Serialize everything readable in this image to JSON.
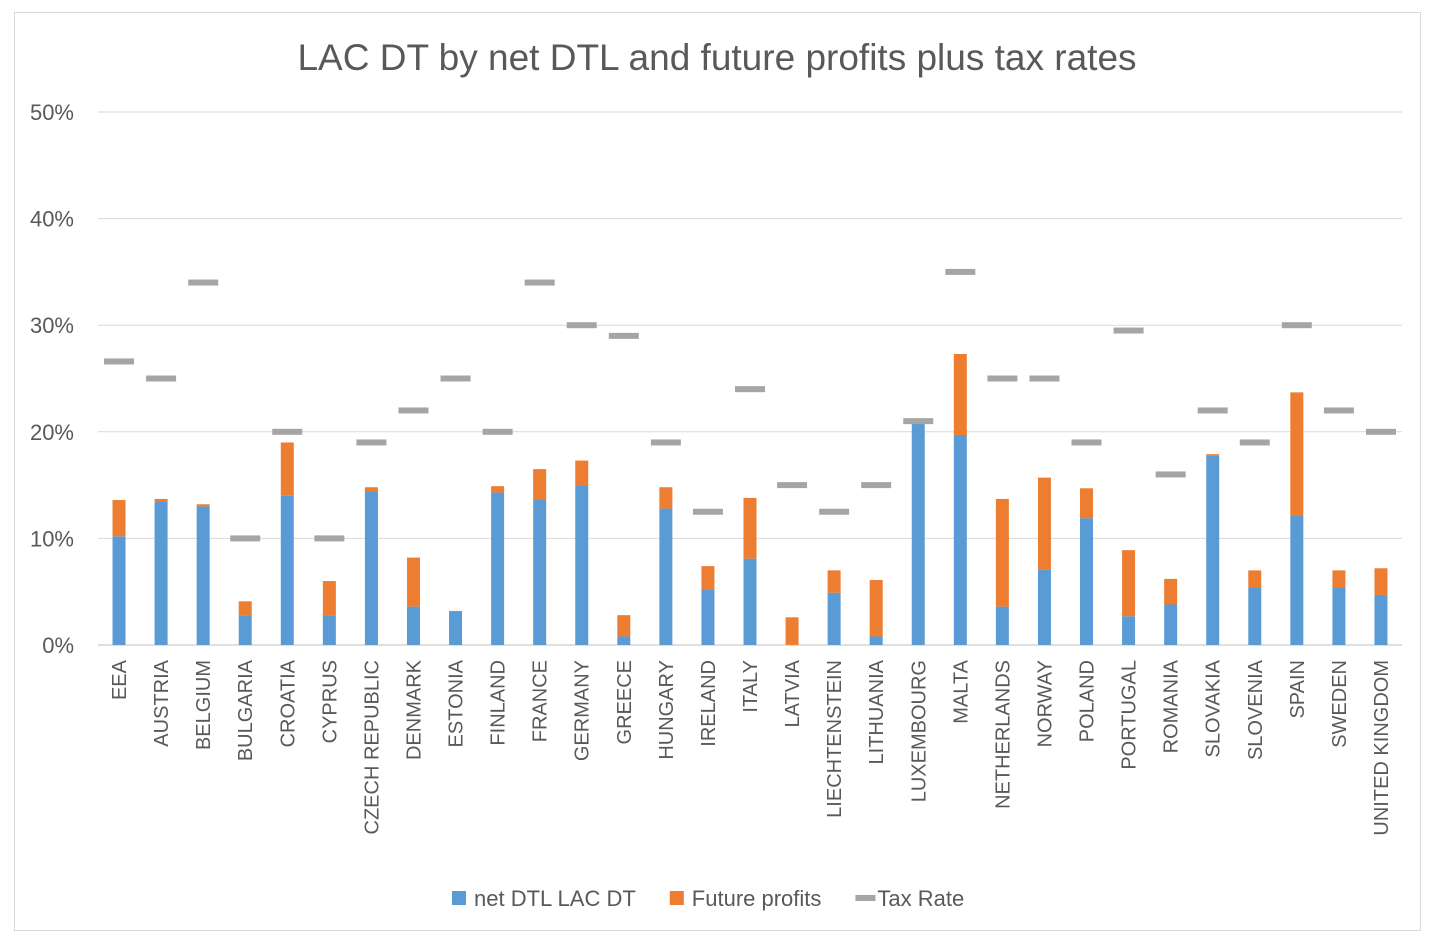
{
  "chart_data": {
    "type": "bar",
    "stacked": true,
    "title": "LAC DT by net DTL and future profits plus tax rates",
    "xlabel": "",
    "ylabel": "",
    "ylim": [
      0,
      0.5
    ],
    "yticks": [
      0,
      0.1,
      0.2,
      0.3,
      0.4,
      0.5
    ],
    "ytick_labels": [
      "0%",
      "10%",
      "20%",
      "30%",
      "40%",
      "50%"
    ],
    "grid": true,
    "legend_position": "bottom",
    "categories": [
      "EEA",
      "AUSTRIA",
      "BELGIUM",
      "BULGARIA",
      "CROATIA",
      "CYPRUS",
      "CZECH REPUBLIC",
      "DENMARK",
      "ESTONIA",
      "FINLAND",
      "FRANCE",
      "GERMANY",
      "GREECE",
      "HUNGARY",
      "IRELAND",
      "ITALY",
      "LATVIA",
      "LIECHTENSTEIN",
      "LITHUANIA",
      "LUXEMBOURG",
      "MALTA",
      "NETHERLANDS",
      "NORWAY",
      "POLAND",
      "PORTUGAL",
      "ROMANIA",
      "SLOVAKIA",
      "SLOVENIA",
      "SPAIN",
      "SWEDEN",
      "UNITED KINGDOM"
    ],
    "series": [
      {
        "name": "net DTL LAC DT",
        "kind": "bar",
        "color": "#5b9bd5",
        "values": [
          0.102,
          0.135,
          0.13,
          0.028,
          0.14,
          0.028,
          0.144,
          0.036,
          0.031,
          0.143,
          0.136,
          0.15,
          0.008,
          0.128,
          0.052,
          0.081,
          0.0,
          0.049,
          0.008,
          0.208,
          0.197,
          0.036,
          0.071,
          0.119,
          0.027,
          0.038,
          0.178,
          0.054,
          0.121,
          0.054,
          0.047
        ]
      },
      {
        "name": "Future profits",
        "kind": "bar",
        "color": "#ed7d31",
        "values": [
          0.034,
          0.002,
          0.002,
          0.013,
          0.05,
          0.032,
          0.004,
          0.046,
          0.001,
          0.006,
          0.029,
          0.023,
          0.02,
          0.02,
          0.022,
          0.057,
          0.026,
          0.021,
          0.053,
          0.0,
          0.076,
          0.101,
          0.086,
          0.028,
          0.062,
          0.024,
          0.001,
          0.016,
          0.116,
          0.016,
          0.025
        ]
      },
      {
        "name": "Tax Rate",
        "kind": "marker",
        "color": "#a5a5a5",
        "values": [
          0.266,
          0.25,
          0.34,
          0.1,
          0.2,
          0.1,
          0.19,
          0.22,
          0.25,
          0.2,
          0.34,
          0.3,
          0.29,
          0.19,
          0.125,
          0.24,
          0.15,
          0.125,
          0.15,
          0.21,
          0.35,
          0.25,
          0.25,
          0.19,
          0.295,
          0.16,
          0.22,
          0.19,
          0.3,
          0.22,
          0.2
        ]
      }
    ]
  }
}
